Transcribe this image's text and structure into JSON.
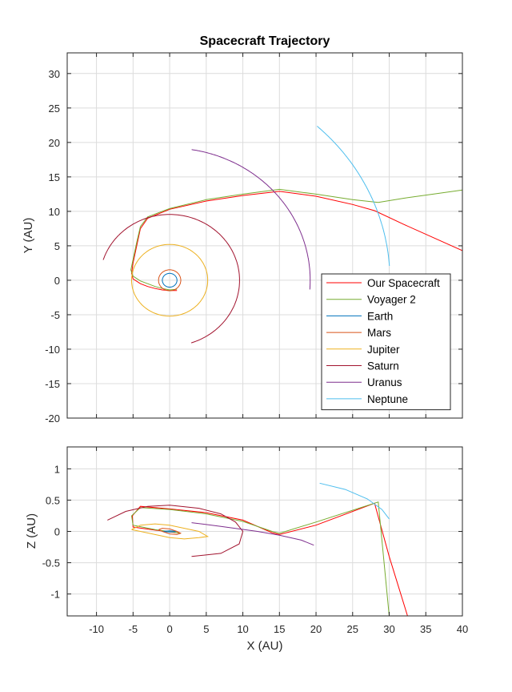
{
  "chart_data": [
    {
      "type": "line",
      "title": "Spacecraft Trajectory",
      "xlabel": "",
      "ylabel": "Y (AU)",
      "xlim": [
        -14,
        40
      ],
      "ylim": [
        -20,
        33
      ],
      "xticks": [
        -10,
        -5,
        0,
        5,
        10,
        15,
        20,
        25,
        30,
        35,
        40
      ],
      "yticks": [
        -20,
        -15,
        -10,
        -5,
        0,
        5,
        10,
        15,
        20,
        25,
        30
      ],
      "grid": true,
      "legend_position": "lower-right",
      "series": [
        {
          "name": "Our Spacecraft",
          "color": "#ff0000",
          "x": [
            1,
            0,
            -1,
            -2,
            -3,
            -4,
            -5,
            -5.2,
            -5,
            -4.5,
            -4,
            -3,
            0,
            5,
            10,
            15,
            20,
            25,
            28,
            32,
            36,
            40
          ],
          "y": [
            -1.5,
            -1.5,
            -1.4,
            -1.2,
            -0.9,
            -0.5,
            0.2,
            1.0,
            2.5,
            5,
            7.5,
            9,
            10.3,
            11.5,
            12.3,
            12.9,
            12.2,
            11,
            10.1,
            8.1,
            6.2,
            4.3
          ]
        },
        {
          "name": "Voyager 2",
          "color": "#77ac30",
          "x": [
            1,
            0,
            -1,
            -2,
            -3,
            -4,
            -5,
            -5.3,
            -5,
            -4.5,
            -4,
            -3,
            0,
            5,
            10,
            15,
            20,
            25,
            28.5,
            32,
            36,
            40
          ],
          "y": [
            -1.3,
            -1.4,
            -1.2,
            -0.9,
            -0.5,
            -0.1,
            0.6,
            1.5,
            3,
            5.5,
            7.8,
            9.2,
            10.4,
            11.7,
            12.5,
            13.2,
            12.5,
            11.7,
            11.3,
            11.9,
            12.5,
            13.1
          ]
        },
        {
          "name": "Earth",
          "color": "#0072bd",
          "orbit": {
            "a": 1.0,
            "start_deg": 0,
            "end_deg": 360
          }
        },
        {
          "name": "Mars",
          "color": "#d95319",
          "orbit": {
            "a": 1.52,
            "start_deg": 0,
            "end_deg": 360
          }
        },
        {
          "name": "Jupiter",
          "color": "#edb120",
          "orbit": {
            "a": 5.2,
            "start_deg": 0,
            "end_deg": 360
          }
        },
        {
          "name": "Saturn",
          "color": "#a2142f",
          "orbit": {
            "a": 9.55,
            "start_deg": -72,
            "end_deg": 162
          }
        },
        {
          "name": "Uranus",
          "color": "#7e2f8e",
          "orbit": {
            "a": 19.2,
            "start_deg": -4,
            "end_deg": 81
          }
        },
        {
          "name": "Neptune",
          "color": "#4dbeee",
          "orbit": {
            "a": 30.1,
            "start_deg": 4,
            "end_deg": 48
          }
        }
      ]
    },
    {
      "type": "line",
      "title": "",
      "xlabel": "X (AU)",
      "ylabel": "Z (AU)",
      "xlim": [
        -14,
        40
      ],
      "ylim": [
        -1.35,
        1.35
      ],
      "xticks": [
        -10,
        -5,
        0,
        5,
        10,
        15,
        20,
        25,
        30,
        35,
        40
      ],
      "yticks": [
        -1,
        -0.5,
        0,
        0.5,
        1
      ],
      "grid": true,
      "series": [
        {
          "name": "Our Spacecraft",
          "color": "#ff0000",
          "x": [
            1.5,
            -2,
            -5,
            -5.1,
            -4,
            0,
            5,
            10,
            14,
            15,
            20,
            28,
            30,
            32.5
          ],
          "y": [
            -0.03,
            0.02,
            0.07,
            0.25,
            0.4,
            0.36,
            0.3,
            0.18,
            -0.02,
            -0.05,
            0.1,
            0.45,
            -0.4,
            -1.35
          ]
        },
        {
          "name": "Voyager 2",
          "color": "#77ac30",
          "x": [
            1.5,
            -2,
            -5,
            -5.2,
            -4,
            0,
            5,
            10,
            14,
            15,
            20,
            28.5,
            29.3,
            30
          ],
          "y": [
            -0.03,
            0.03,
            0.1,
            0.25,
            0.38,
            0.35,
            0.28,
            0.16,
            0.0,
            -0.03,
            0.15,
            0.47,
            -0.5,
            -1.35
          ]
        },
        {
          "name": "Earth",
          "color": "#0072bd",
          "x": [
            -1,
            0,
            1,
            0,
            -1
          ],
          "y": [
            0.0,
            0.01,
            0.0,
            -0.01,
            0.0
          ]
        },
        {
          "name": "Mars",
          "color": "#d95319",
          "x": [
            -1.5,
            -1,
            0,
            1,
            1.5,
            1,
            0,
            -1,
            -1.5
          ],
          "y": [
            0.03,
            0.05,
            0.04,
            0.0,
            -0.03,
            -0.05,
            -0.04,
            0.0,
            0.03
          ]
        },
        {
          "name": "Jupiter",
          "color": "#edb120",
          "x": [
            -5.2,
            -4,
            -2,
            0,
            2,
            4,
            5.2,
            4,
            2,
            0,
            -2,
            -4,
            -5.2
          ],
          "y": [
            0.03,
            0.1,
            0.12,
            0.1,
            0.05,
            0.0,
            -0.08,
            -0.1,
            -0.12,
            -0.1,
            -0.05,
            0.0,
            0.03
          ]
        },
        {
          "name": "Saturn",
          "color": "#a2142f",
          "x": [
            3,
            7,
            9.5,
            10,
            9,
            7,
            4,
            0,
            -3,
            -6,
            -8.5
          ],
          "y": [
            -0.4,
            -0.35,
            -0.2,
            0.0,
            0.15,
            0.28,
            0.37,
            0.42,
            0.4,
            0.32,
            0.18
          ]
        },
        {
          "name": "Uranus",
          "color": "#7e2f8e",
          "x": [
            3,
            7,
            12,
            15,
            18,
            19.7
          ],
          "y": [
            0.14,
            0.08,
            0.0,
            -0.06,
            -0.14,
            -0.22
          ]
        },
        {
          "name": "Neptune",
          "color": "#4dbeee",
          "x": [
            20.5,
            24,
            27,
            29,
            30
          ],
          "y": [
            0.77,
            0.67,
            0.52,
            0.35,
            0.2
          ]
        }
      ]
    }
  ]
}
